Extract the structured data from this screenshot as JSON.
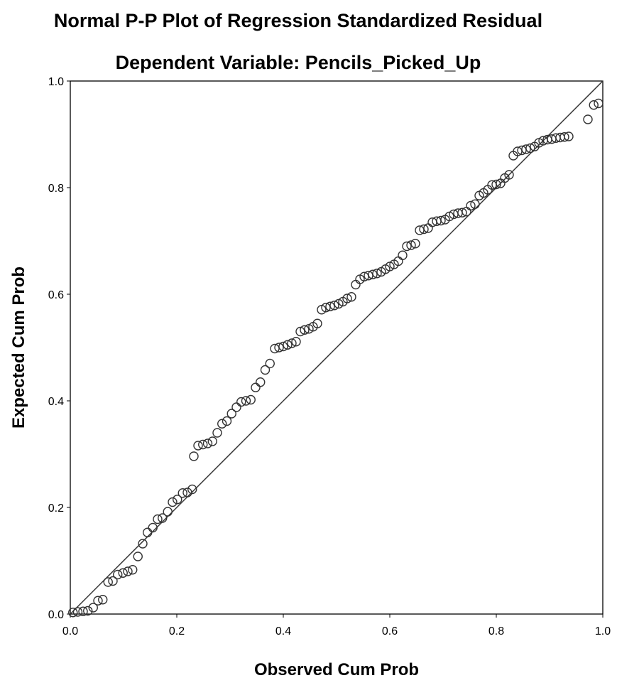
{
  "chart_data": {
    "type": "scatter",
    "title": "Normal P-P Plot of Regression Standardized Residual",
    "subtitle": "Dependent Variable: Pencils_Picked_Up",
    "xlabel": "Observed Cum Prob",
    "ylabel": "Expected Cum Prob",
    "xlim": [
      0.0,
      1.0
    ],
    "ylim": [
      0.0,
      1.0
    ],
    "x_ticks": [
      "0.0",
      "0.2",
      "0.4",
      "0.6",
      "0.8",
      "1.0"
    ],
    "y_ticks": [
      "0.0",
      "0.2",
      "0.4",
      "0.6",
      "0.8",
      "1.0"
    ],
    "grid": false,
    "reference_line": {
      "from": [
        0.0,
        0.0
      ],
      "to": [
        1.0,
        1.0
      ]
    },
    "marker": "open-circle",
    "points": [
      [
        0.005,
        0.003
      ],
      [
        0.014,
        0.004
      ],
      [
        0.024,
        0.005
      ],
      [
        0.033,
        0.006
      ],
      [
        0.043,
        0.012
      ],
      [
        0.052,
        0.025
      ],
      [
        0.061,
        0.027
      ],
      [
        0.071,
        0.06
      ],
      [
        0.08,
        0.062
      ],
      [
        0.089,
        0.074
      ],
      [
        0.099,
        0.077
      ],
      [
        0.108,
        0.08
      ],
      [
        0.117,
        0.083
      ],
      [
        0.127,
        0.108
      ],
      [
        0.136,
        0.132
      ],
      [
        0.145,
        0.153
      ],
      [
        0.155,
        0.162
      ],
      [
        0.164,
        0.178
      ],
      [
        0.173,
        0.18
      ],
      [
        0.183,
        0.192
      ],
      [
        0.192,
        0.21
      ],
      [
        0.201,
        0.215
      ],
      [
        0.211,
        0.227
      ],
      [
        0.22,
        0.228
      ],
      [
        0.229,
        0.234
      ],
      [
        0.232,
        0.296
      ],
      [
        0.24,
        0.316
      ],
      [
        0.249,
        0.318
      ],
      [
        0.258,
        0.32
      ],
      [
        0.267,
        0.324
      ],
      [
        0.276,
        0.34
      ],
      [
        0.285,
        0.357
      ],
      [
        0.294,
        0.362
      ],
      [
        0.303,
        0.376
      ],
      [
        0.312,
        0.388
      ],
      [
        0.321,
        0.398
      ],
      [
        0.33,
        0.4
      ],
      [
        0.339,
        0.402
      ],
      [
        0.348,
        0.425
      ],
      [
        0.357,
        0.435
      ],
      [
        0.366,
        0.458
      ],
      [
        0.375,
        0.47
      ],
      [
        0.384,
        0.498
      ],
      [
        0.392,
        0.5
      ],
      [
        0.4,
        0.502
      ],
      [
        0.408,
        0.505
      ],
      [
        0.416,
        0.508
      ],
      [
        0.424,
        0.511
      ],
      [
        0.432,
        0.53
      ],
      [
        0.44,
        0.533
      ],
      [
        0.448,
        0.535
      ],
      [
        0.456,
        0.539
      ],
      [
        0.464,
        0.545
      ],
      [
        0.472,
        0.571
      ],
      [
        0.48,
        0.575
      ],
      [
        0.488,
        0.577
      ],
      [
        0.496,
        0.579
      ],
      [
        0.504,
        0.582
      ],
      [
        0.512,
        0.586
      ],
      [
        0.52,
        0.592
      ],
      [
        0.528,
        0.595
      ],
      [
        0.536,
        0.618
      ],
      [
        0.544,
        0.628
      ],
      [
        0.552,
        0.633
      ],
      [
        0.56,
        0.635
      ],
      [
        0.568,
        0.637
      ],
      [
        0.576,
        0.639
      ],
      [
        0.584,
        0.642
      ],
      [
        0.592,
        0.647
      ],
      [
        0.6,
        0.652
      ],
      [
        0.608,
        0.656
      ],
      [
        0.616,
        0.662
      ],
      [
        0.624,
        0.673
      ],
      [
        0.632,
        0.69
      ],
      [
        0.64,
        0.692
      ],
      [
        0.648,
        0.695
      ],
      [
        0.656,
        0.72
      ],
      [
        0.664,
        0.722
      ],
      [
        0.672,
        0.724
      ],
      [
        0.68,
        0.735
      ],
      [
        0.688,
        0.737
      ],
      [
        0.696,
        0.738
      ],
      [
        0.704,
        0.74
      ],
      [
        0.712,
        0.746
      ],
      [
        0.72,
        0.75
      ],
      [
        0.728,
        0.752
      ],
      [
        0.736,
        0.753
      ],
      [
        0.744,
        0.755
      ],
      [
        0.752,
        0.766
      ],
      [
        0.76,
        0.769
      ],
      [
        0.768,
        0.785
      ],
      [
        0.776,
        0.79
      ],
      [
        0.784,
        0.796
      ],
      [
        0.792,
        0.805
      ],
      [
        0.8,
        0.806
      ],
      [
        0.808,
        0.808
      ],
      [
        0.816,
        0.818
      ],
      [
        0.824,
        0.824
      ],
      [
        0.832,
        0.86
      ],
      [
        0.84,
        0.868
      ],
      [
        0.848,
        0.87
      ],
      [
        0.856,
        0.872
      ],
      [
        0.864,
        0.874
      ],
      [
        0.872,
        0.877
      ],
      [
        0.88,
        0.884
      ],
      [
        0.888,
        0.888
      ],
      [
        0.896,
        0.89
      ],
      [
        0.904,
        0.891
      ],
      [
        0.912,
        0.893
      ],
      [
        0.92,
        0.894
      ],
      [
        0.928,
        0.895
      ],
      [
        0.936,
        0.896
      ],
      [
        0.972,
        0.928
      ],
      [
        0.983,
        0.955
      ],
      [
        0.992,
        0.958
      ]
    ]
  }
}
